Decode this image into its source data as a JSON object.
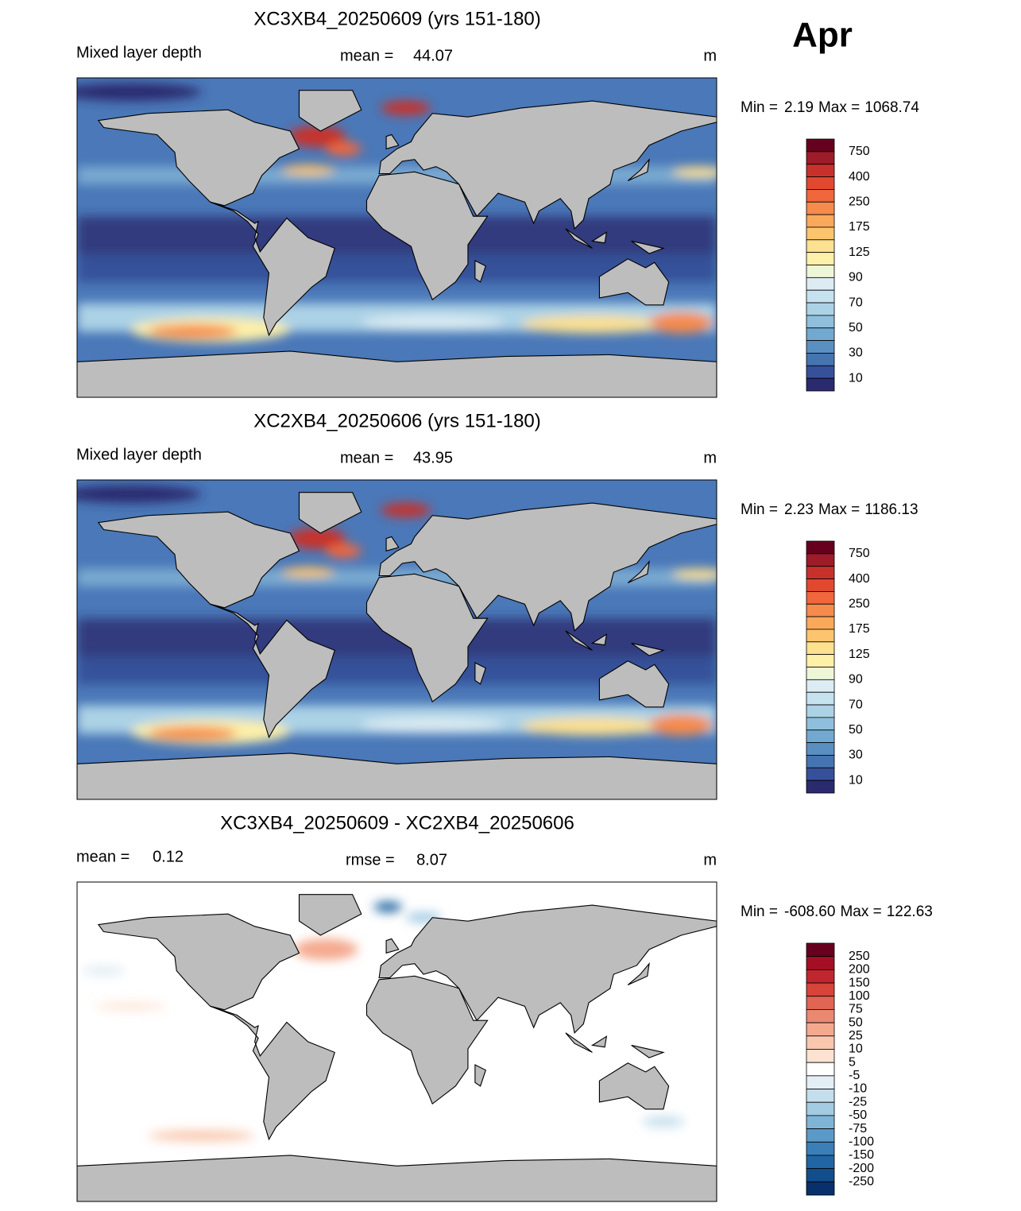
{
  "month": "Apr",
  "panels": [
    {
      "title": "XC3XB4_20250609 (yrs 151-180)",
      "left_label": "Mixed layer depth",
      "stat_label": "mean =",
      "stat": 44.07,
      "units": "m",
      "min_label": "Min =",
      "min": 2.19,
      "max_label": "Max =",
      "max": 1068.74,
      "colorbar": {
        "labels": [
          750,
          400,
          250,
          175,
          125,
          90,
          70,
          50,
          30,
          10
        ],
        "colors": [
          "#67001f",
          "#9e1b2a",
          "#c8312b",
          "#e0492f",
          "#f0663d",
          "#f68b4c",
          "#f9a95a",
          "#fcc46e",
          "#fde090",
          "#fdf0a8",
          "#eef6d8",
          "#dcecf2",
          "#c6e2ee",
          "#acd2e6",
          "#8fbfdc",
          "#72a9d0",
          "#5a8fc2",
          "#4674b0",
          "#36519a",
          "#2c2a6e"
        ]
      }
    },
    {
      "title": "XC2XB4_20250606 (yrs 151-180)",
      "left_label": "Mixed layer depth",
      "stat_label": "mean =",
      "stat": 43.95,
      "units": "m",
      "min_label": "Min =",
      "min": 2.23,
      "max_label": "Max =",
      "max": 1186.13,
      "colorbar": {
        "labels": [
          750,
          400,
          250,
          175,
          125,
          90,
          70,
          50,
          30,
          10
        ],
        "colors": [
          "#67001f",
          "#9e1b2a",
          "#c8312b",
          "#e0492f",
          "#f0663d",
          "#f68b4c",
          "#f9a95a",
          "#fcc46e",
          "#fde090",
          "#fdf0a8",
          "#eef6d8",
          "#dcecf2",
          "#c6e2ee",
          "#acd2e6",
          "#8fbfdc",
          "#72a9d0",
          "#5a8fc2",
          "#4674b0",
          "#36519a",
          "#2c2a6e"
        ]
      }
    },
    {
      "title": "XC3XB4_20250609 - XC2XB4_20250606",
      "left_label": "mean =",
      "left_value": 0.12,
      "stat_label": "rmse =",
      "stat": 8.07,
      "units": "m",
      "min_label": "Min =",
      "min": {
        "value": -608.6,
        "label": "-608.60"
      },
      "max_label": "Max =",
      "max": 122.63,
      "colorbar": {
        "labels": [
          250,
          200,
          150,
          100,
          75,
          50,
          25,
          10,
          5,
          -5,
          -10,
          -25,
          -50,
          -75,
          -100,
          -150,
          -200,
          -250
        ],
        "colors": [
          "#67001f",
          "#a50f26",
          "#c0262d",
          "#d6443a",
          "#e06552",
          "#ea8870",
          "#f4a98e",
          "#f9c7ae",
          "#fde2d2",
          "#ffffff",
          "#e3eef5",
          "#c5deec",
          "#a3cbe2",
          "#7fb4d6",
          "#5b9ac8",
          "#3a7fb8",
          "#2166a4",
          "#134d8b",
          "#08306b"
        ]
      }
    }
  ]
}
